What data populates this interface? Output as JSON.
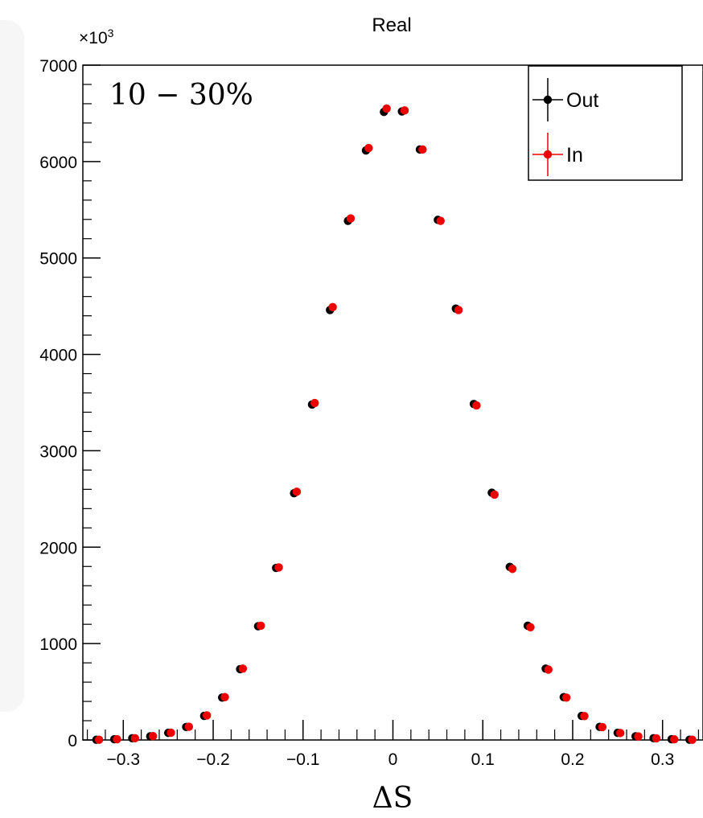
{
  "chart_data": {
    "type": "scatter",
    "title": "Real",
    "annotation": "10 − 30%",
    "xlabel": "ΔS",
    "ylabel": "",
    "y_multiplier_label": "×10",
    "y_multiplier_exp": "3",
    "xlim": [
      -0.345,
      0.345
    ],
    "ylim": [
      0,
      7000
    ],
    "x_ticks": [
      -0.3,
      -0.2,
      -0.1,
      0,
      0.1,
      0.2,
      0.3
    ],
    "x_tick_labels": [
      "−0.3",
      "−0.2",
      "−0.1",
      "0",
      "0.1",
      "0.2",
      "0.3"
    ],
    "y_ticks": [
      0,
      1000,
      2000,
      3000,
      4000,
      5000,
      6000,
      7000
    ],
    "y_tick_labels": [
      "0",
      "1000",
      "2000",
      "3000",
      "4000",
      "5000",
      "6000",
      "7000"
    ],
    "x": [
      -0.33,
      -0.31,
      -0.29,
      -0.27,
      -0.25,
      -0.23,
      -0.21,
      -0.19,
      -0.17,
      -0.15,
      -0.13,
      -0.11,
      -0.09,
      -0.07,
      -0.05,
      -0.03,
      -0.01,
      0.01,
      0.03,
      0.05,
      0.07,
      0.09,
      0.11,
      0.13,
      0.15,
      0.17,
      0.19,
      0.21,
      0.23,
      0.25,
      0.27,
      0.29,
      0.31,
      0.33
    ],
    "series": [
      {
        "name": "Out",
        "color": "#000000",
        "values": [
          3,
          8,
          18,
          38,
          74,
          135,
          250,
          440,
          735,
          1180,
          1785,
          2560,
          3480,
          4460,
          5385,
          6115,
          6515,
          6520,
          6125,
          5395,
          4475,
          3485,
          2565,
          1795,
          1185,
          740,
          445,
          250,
          136,
          74,
          38,
          18,
          8,
          3
        ]
      },
      {
        "name": "In",
        "color": "#ee0000",
        "values": [
          3,
          8,
          18,
          40,
          76,
          137,
          255,
          445,
          740,
          1185,
          1790,
          2575,
          3495,
          4490,
          5410,
          6140,
          6550,
          6530,
          6125,
          5385,
          4460,
          3470,
          2545,
          1775,
          1170,
          730,
          440,
          248,
          134,
          72,
          37,
          17,
          7,
          3
        ]
      }
    ],
    "legend": {
      "position": "top-right",
      "entries": [
        "Out",
        "In"
      ]
    },
    "grid": false
  }
}
